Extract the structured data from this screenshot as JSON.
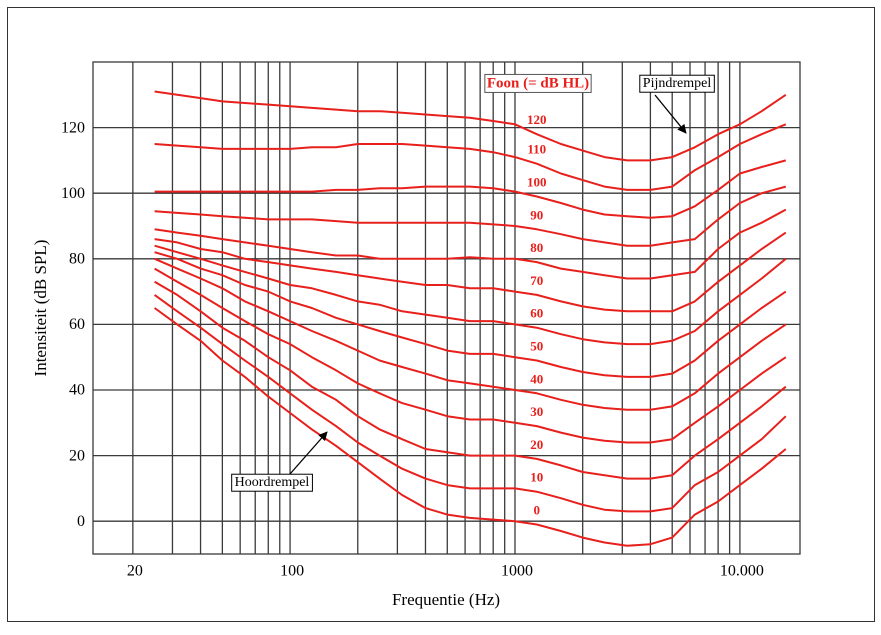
{
  "chart_data": {
    "type": "line",
    "xlabel": "Frequentie (Hz)",
    "ylabel": "Intensiteit (dB SPL)",
    "legend_title": "Foon (= dB HL)",
    "annotations": [
      "Pijndrempel",
      "Hoordrempel"
    ],
    "xscale": "log",
    "grid": true,
    "xlim": [
      13.3,
      18500
    ],
    "ylim": [
      -10,
      140
    ],
    "xticks": [
      20,
      100,
      1000,
      {
        "value": 10000,
        "label": "10.000"
      }
    ],
    "xminor_ticks": [
      30,
      40,
      50,
      60,
      70,
      80,
      90,
      200,
      300,
      400,
      500,
      600,
      700,
      800,
      900,
      2000,
      3000,
      4000,
      5000,
      6000,
      7000,
      8000,
      9000
    ],
    "yticks": [
      0,
      20,
      40,
      60,
      80,
      100,
      120
    ],
    "x": [
      25,
      31.5,
      40,
      50,
      63,
      80,
      100,
      125,
      160,
      200,
      250,
      315,
      400,
      500,
      630,
      800,
      1000,
      1250,
      1600,
      2000,
      2500,
      3150,
      4000,
      5000,
      6300,
      8000,
      10000,
      12500,
      16000
    ],
    "series": [
      {
        "name": "0",
        "color": "#e8201c",
        "values": [
          65,
          60,
          55,
          49,
          44,
          38,
          33,
          28,
          23,
          18,
          13,
          8,
          4,
          2,
          1,
          0.5,
          0,
          -1,
          -3,
          -5,
          -6.5,
          -7.5,
          -7,
          -5,
          2,
          6,
          11,
          16,
          22
        ]
      },
      {
        "name": "10",
        "color": "#e8201c",
        "values": [
          69,
          64,
          59,
          54,
          49,
          44,
          39,
          34,
          29,
          24,
          20,
          16,
          13,
          11,
          10,
          10,
          10,
          9,
          7,
          5,
          3.5,
          3,
          3,
          4,
          11,
          15,
          20,
          25,
          32
        ]
      },
      {
        "name": "20",
        "color": "#e8201c",
        "values": [
          73,
          69,
          64,
          59,
          55,
          50,
          46,
          41,
          37,
          32,
          28,
          25,
          22,
          21,
          20,
          20,
          20,
          19,
          17,
          15,
          14,
          13,
          13,
          14,
          20,
          25,
          30,
          35,
          41
        ]
      },
      {
        "name": "30",
        "color": "#e8201c",
        "values": [
          77,
          73,
          69,
          65,
          61,
          57,
          54,
          50,
          46,
          42,
          39,
          36,
          34,
          32,
          31,
          31,
          30,
          29,
          27,
          25.5,
          24.5,
          24,
          24,
          25,
          30,
          35,
          40,
          45,
          50
        ]
      },
      {
        "name": "40",
        "color": "#e8201c",
        "values": [
          80,
          77,
          74,
          71,
          67,
          64,
          61,
          58,
          55,
          52,
          49,
          47,
          45,
          43,
          42,
          41,
          40,
          39,
          37,
          35.5,
          34.5,
          34,
          34,
          35,
          39,
          45,
          50,
          55,
          60
        ]
      },
      {
        "name": "50",
        "color": "#e8201c",
        "values": [
          82,
          80,
          77,
          75,
          72,
          70,
          67,
          65,
          62,
          60,
          58,
          56,
          54,
          52,
          51,
          51,
          50,
          49,
          47,
          45.5,
          44.5,
          44,
          44,
          45,
          49,
          55,
          60,
          65,
          70
        ]
      },
      {
        "name": "60",
        "color": "#e8201c",
        "values": [
          84,
          82,
          80,
          78,
          76,
          74,
          72,
          71,
          69,
          67,
          66,
          64,
          63,
          62,
          61,
          61,
          60,
          59,
          57,
          55.5,
          54.5,
          54,
          54,
          55,
          58,
          64,
          69,
          74,
          80
        ]
      },
      {
        "name": "70",
        "color": "#e8201c",
        "values": [
          86,
          85,
          83,
          82,
          80,
          79,
          78,
          77,
          76,
          75,
          74,
          73,
          72,
          72,
          71,
          71,
          70,
          69,
          67,
          65.5,
          64.5,
          64,
          64,
          64,
          67,
          73,
          78,
          83,
          88
        ]
      },
      {
        "name": "80",
        "color": "#e8201c",
        "values": [
          89,
          88,
          87,
          86,
          85,
          84,
          83,
          82,
          81,
          81,
          80,
          80,
          80,
          80,
          80.5,
          80,
          80,
          79,
          77,
          76,
          75,
          74,
          74,
          75,
          76,
          83,
          88,
          91,
          95
        ]
      },
      {
        "name": "90",
        "color": "#e8201c",
        "values": [
          94.5,
          94,
          93.5,
          93,
          92.5,
          92,
          92,
          92,
          91.5,
          91,
          91,
          91,
          91,
          91,
          91,
          90.5,
          90,
          89,
          87.5,
          86,
          85,
          84,
          84,
          85,
          86,
          92,
          97,
          100,
          102
        ]
      },
      {
        "name": "100",
        "color": "#e8201c",
        "values": [
          100.5,
          100.5,
          100.5,
          100.5,
          100.5,
          100.5,
          100.5,
          100.5,
          101,
          101,
          101.5,
          101.5,
          102,
          102,
          102,
          101.5,
          100.5,
          99,
          97,
          95,
          93.5,
          93,
          92.5,
          93,
          96,
          101,
          106,
          108,
          110
        ]
      },
      {
        "name": "110",
        "color": "#e8201c",
        "values": [
          115,
          114.5,
          114,
          113.5,
          113.5,
          113.5,
          113.5,
          114,
          114,
          115,
          115,
          115,
          114.5,
          114,
          113.5,
          112.5,
          111,
          109,
          106,
          104,
          102,
          101,
          101,
          102,
          107,
          111,
          115,
          118,
          121
        ]
      },
      {
        "name": "120",
        "color": "#e8201c",
        "values": [
          131,
          130,
          129,
          128,
          127.5,
          127,
          126.5,
          126,
          125.5,
          125,
          125,
          124.5,
          124,
          123.5,
          123,
          122,
          121,
          118,
          115,
          113,
          111,
          110,
          110,
          111,
          114,
          118,
          121,
          125,
          130
        ]
      }
    ]
  }
}
